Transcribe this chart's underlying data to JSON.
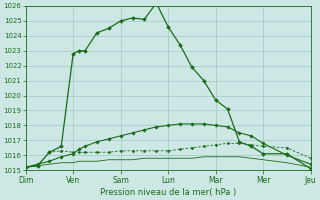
{
  "xlabel": "Pression niveau de la mer( hPa )",
  "bg_color": "#cde8e4",
  "grid_color": "#a8cdc9",
  "line_color": "#1a6b1a",
  "x_labels": [
    "Dim",
    "Ven",
    "Sam",
    "Lun",
    "Mar",
    "Mer",
    "Jeu"
  ],
  "x_tick_pos": [
    0,
    4,
    8,
    12,
    16,
    20,
    24
  ],
  "ylim": [
    1015,
    1026
  ],
  "yticks": [
    1015,
    1016,
    1017,
    1018,
    1019,
    1020,
    1021,
    1022,
    1023,
    1024,
    1025,
    1026
  ],
  "series_upper": [
    1015.2,
    1015.3,
    1016.2,
    1016.6,
    1022.8,
    1023.0,
    1023.0,
    1024.2,
    1024.5,
    1025.0,
    1025.2,
    1025.1,
    1026.2,
    1024.6,
    1023.4,
    1021.9,
    1021.0,
    1019.7,
    1019.1,
    1016.9,
    1016.6,
    1016.1,
    1016.1,
    1015.1
  ],
  "series_upper_x": [
    0,
    1,
    2,
    3,
    4,
    4.5,
    5,
    6,
    7,
    8,
    9,
    10,
    11,
    12,
    13,
    14,
    15,
    16,
    17,
    18,
    19,
    20,
    22,
    24
  ],
  "series_trend": [
    1015.2,
    1015.4,
    1015.6,
    1015.9,
    1016.1,
    1016.4,
    1016.6,
    1016.9,
    1017.1,
    1017.3,
    1017.5,
    1017.7,
    1017.9,
    1018.0,
    1018.1,
    1018.1,
    1018.1,
    1018.0,
    1017.9,
    1017.5,
    1017.3,
    1016.8,
    1016.0,
    1015.4
  ],
  "series_trend_x": [
    0,
    1,
    2,
    3,
    4,
    4.5,
    5,
    6,
    7,
    8,
    9,
    10,
    11,
    12,
    13,
    14,
    15,
    16,
    17,
    18,
    19,
    20,
    22,
    24
  ],
  "series_mid": [
    1015.2,
    1015.3,
    1016.2,
    1016.3,
    1016.2,
    1016.2,
    1016.2,
    1016.2,
    1016.2,
    1016.3,
    1016.3,
    1016.3,
    1016.3,
    1016.3,
    1016.4,
    1016.5,
    1016.6,
    1016.7,
    1016.8,
    1016.8,
    1016.7,
    1016.6,
    1016.5,
    1015.8
  ],
  "series_mid_x": [
    0,
    1,
    2,
    3,
    4,
    4.5,
    5,
    6,
    7,
    8,
    9,
    10,
    11,
    12,
    13,
    14,
    15,
    16,
    17,
    18,
    19,
    20,
    22,
    24
  ],
  "series_lower": [
    1015.2,
    1015.3,
    1015.4,
    1015.5,
    1015.5,
    1015.6,
    1015.6,
    1015.6,
    1015.7,
    1015.7,
    1015.7,
    1015.8,
    1015.8,
    1015.8,
    1015.8,
    1015.8,
    1015.9,
    1015.9,
    1015.9,
    1015.9,
    1015.8,
    1015.7,
    1015.5,
    1015.2
  ],
  "series_lower_x": [
    0,
    1,
    2,
    3,
    4,
    4.5,
    5,
    6,
    7,
    8,
    9,
    10,
    11,
    12,
    13,
    14,
    15,
    16,
    17,
    18,
    19,
    20,
    22,
    24
  ]
}
